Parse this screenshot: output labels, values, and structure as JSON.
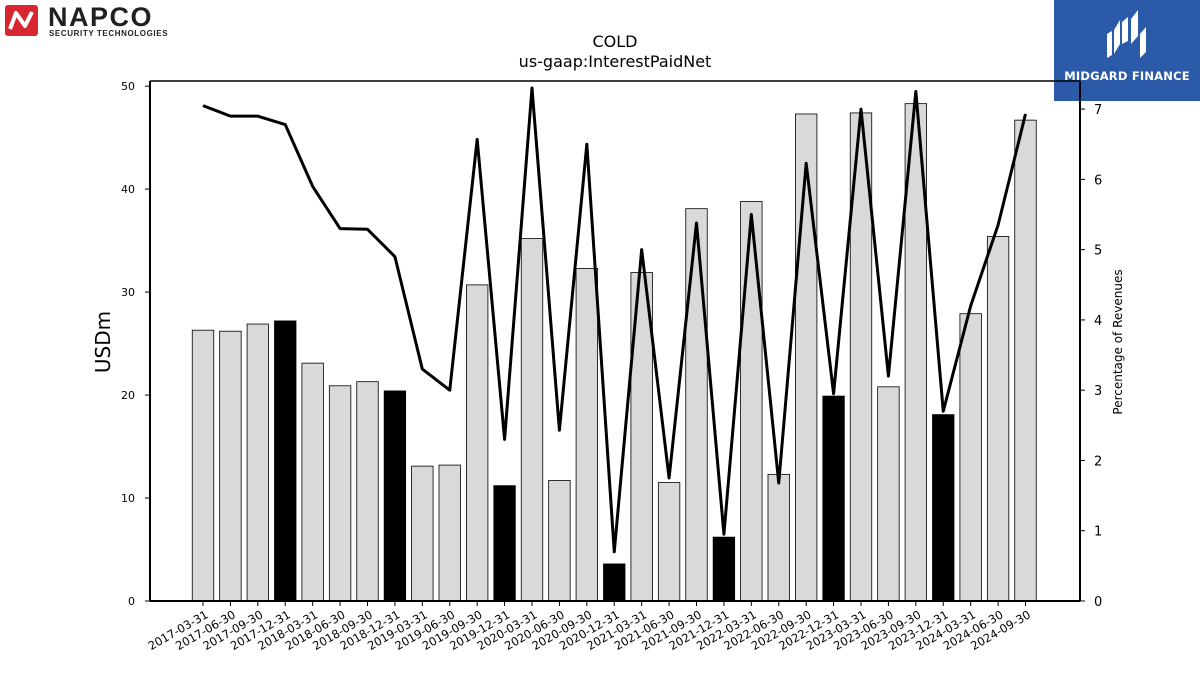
{
  "logos": {
    "left": {
      "name": "NAPCO",
      "tagline": "SECURITY TECHNOLOGIES",
      "accent": "#d7262f",
      "text_color": "#231f20"
    },
    "right": {
      "name": "MIDGARD FINANCE",
      "background": "#2b5aa9",
      "text_color": "#ffffff"
    }
  },
  "chart_data": {
    "type": "bar",
    "title": "COLD",
    "subtitle": "us-gaap:InterestPaidNet",
    "ylabel": "USDm",
    "y2label": "Percentage of Revenues",
    "ylim": [
      0,
      50.5
    ],
    "y2lim": [
      0,
      7.4
    ],
    "yticks": [
      0,
      10,
      20,
      30,
      40,
      50
    ],
    "y2ticks": [
      0,
      1,
      2,
      3,
      4,
      5,
      6,
      7
    ],
    "grid": false,
    "categories": [
      "2017-03-31",
      "2017-06-30",
      "2017-09-30",
      "2017-12-31",
      "2018-03-31",
      "2018-06-30",
      "2018-09-30",
      "2018-12-31",
      "2019-03-31",
      "2019-06-30",
      "2019-09-30",
      "2019-12-31",
      "2020-03-31",
      "2020-06-30",
      "2020-09-30",
      "2020-12-31",
      "2021-03-31",
      "2021-06-30",
      "2021-09-30",
      "2021-12-31",
      "2022-03-31",
      "2022-06-30",
      "2022-09-30",
      "2022-12-31",
      "2023-03-31",
      "2023-06-30",
      "2023-09-30",
      "2023-12-31",
      "2024-03-31",
      "2024-06-30",
      "2024-09-30"
    ],
    "series": [
      {
        "kind": "bar",
        "axis": "left",
        "values": [
          26.3,
          26.2,
          26.9,
          27.2,
          23.1,
          20.9,
          21.3,
          20.4,
          13.1,
          13.2,
          30.7,
          11.2,
          35.2,
          11.7,
          32.3,
          3.6,
          31.9,
          11.5,
          38.1,
          6.2,
          38.8,
          12.3,
          47.3,
          19.9,
          47.4,
          20.8,
          48.3,
          18.1,
          27.9,
          35.4,
          46.7
        ],
        "highlight": [
          false,
          false,
          false,
          true,
          false,
          false,
          false,
          true,
          false,
          false,
          false,
          true,
          false,
          false,
          false,
          true,
          false,
          false,
          false,
          true,
          false,
          false,
          false,
          true,
          false,
          false,
          false,
          true,
          false,
          false,
          false
        ],
        "color": "#d9d9d9",
        "highlight_color": "#000000"
      },
      {
        "kind": "line",
        "axis": "right",
        "values": [
          7.05,
          6.9,
          6.9,
          6.78,
          5.9,
          5.3,
          5.29,
          4.9,
          3.3,
          3.0,
          6.57,
          2.3,
          7.3,
          2.43,
          6.5,
          0.7,
          5.0,
          1.75,
          5.38,
          0.95,
          5.5,
          1.68,
          6.23,
          2.95,
          7.0,
          3.2,
          7.25,
          2.7,
          4.2,
          5.35,
          6.93
        ],
        "color": "#000000"
      }
    ]
  }
}
